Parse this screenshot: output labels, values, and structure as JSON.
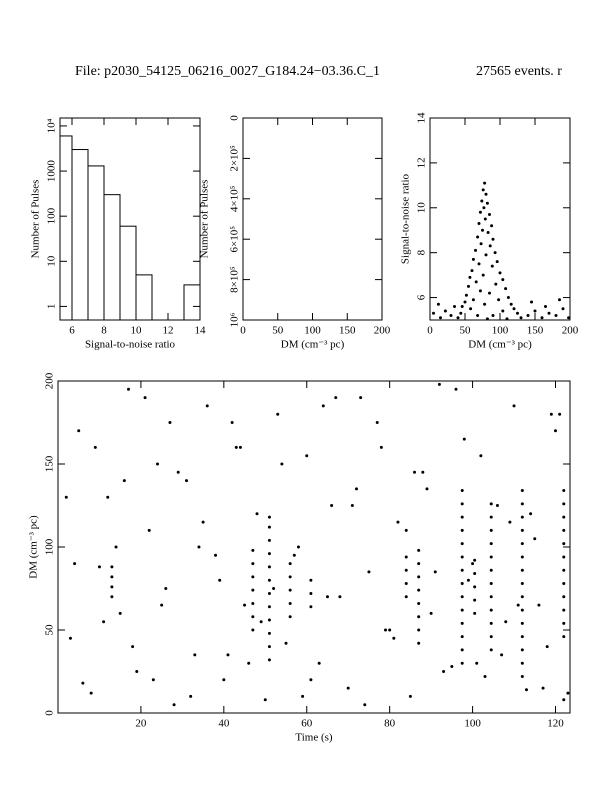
{
  "title": "File: p2030_54125_06216_0027_G184.24−03.36.C_1",
  "subtitle": "27565 events. r",
  "chart_data": [
    {
      "type": "histogram",
      "xlabel": "Signal-to-noise ratio",
      "ylabel": "Number of Pulses",
      "bins": [
        5,
        6,
        7,
        8,
        9,
        10,
        11,
        12,
        13,
        14
      ],
      "values": [
        6000,
        3000,
        1300,
        300,
        60,
        5,
        0,
        0,
        3
      ],
      "xlim": [
        5.25,
        14
      ],
      "xticks": [
        6,
        8,
        10,
        12,
        14
      ],
      "ylim": [
        0.5,
        15000
      ],
      "yscale": "log",
      "yticks": [
        1,
        10,
        100,
        1000,
        {
          "value": 10000,
          "label": "10⁴"
        }
      ],
      "color": "#000000"
    },
    {
      "type": "histogram",
      "xlabel": "DM (cm⁻³ pc)",
      "ylabel": "Number of Pulses",
      "xlim": [
        0,
        200
      ],
      "xticks": [
        0,
        50,
        100,
        150,
        200
      ],
      "ylim": [
        1000000,
        0
      ],
      "yticks": [
        0,
        {
          "value": 200000,
          "label": "2×10⁵"
        },
        {
          "value": 400000,
          "label": "4×10⁵"
        },
        {
          "value": 600000,
          "label": "6×10⁵"
        },
        {
          "value": 800000,
          "label": "8×10⁵"
        },
        {
          "value": 1000000,
          "label": "10⁶"
        }
      ],
      "color": "#000000"
    },
    {
      "type": "scatter",
      "xlabel": "DM (cm⁻³ pc)",
      "ylabel": "Signal-to-noise ratio",
      "x": [
        78,
        76,
        80,
        74,
        82,
        77,
        72,
        85,
        79,
        70,
        88,
        75,
        83,
        68,
        90,
        73,
        86,
        65,
        93,
        80,
        62,
        96,
        70,
        89,
        60,
        100,
        76,
        57,
        104,
        66,
        94,
        55,
        108,
        72,
        85,
        52,
        112,
        62,
        98,
        50,
        116,
        78,
        46,
        120,
        58,
        104,
        44,
        125,
        68,
        90,
        40,
        130,
        82,
        110,
        5,
        15,
        22,
        30,
        35,
        140,
        150,
        160,
        170,
        180,
        190,
        198,
        145,
        12,
        185,
        165
      ],
      "values": [
        11.1,
        10.8,
        10.6,
        10.3,
        10.2,
        10.0,
        9.8,
        9.7,
        9.5,
        9.3,
        9.2,
        9.0,
        8.9,
        8.7,
        8.6,
        8.4,
        8.3,
        8.1,
        8.0,
        7.9,
        7.7,
        7.6,
        7.5,
        7.4,
        7.2,
        7.1,
        7.0,
        6.9,
        6.8,
        6.7,
        6.6,
        6.5,
        6.4,
        6.3,
        6.2,
        6.1,
        6.0,
        5.9,
        5.9,
        5.8,
        5.7,
        5.7,
        5.6,
        5.5,
        5.5,
        5.4,
        5.3,
        5.3,
        5.2,
        5.2,
        5.1,
        5.1,
        5.05,
        5.05,
        5.3,
        5.1,
        5.4,
        5.2,
        5.6,
        5.2,
        5.4,
        5.1,
        5.3,
        5.2,
        5.5,
        5.1,
        5.8,
        5.7,
        5.9,
        5.6
      ],
      "xlim": [
        0,
        200
      ],
      "xticks": [
        0,
        50,
        100,
        150,
        200
      ],
      "ylim": [
        5,
        14
      ],
      "yticks": [
        6,
        8,
        10,
        12,
        14
      ],
      "color": "#000000"
    },
    {
      "type": "scatter",
      "xlabel": "Time (s)",
      "ylabel": "DM (cm⁻³ pc)",
      "x": [
        3,
        5,
        8,
        10,
        12,
        15,
        17,
        19,
        22,
        24,
        26,
        28,
        31,
        33,
        36,
        38,
        40,
        43,
        45,
        48,
        50,
        53,
        55,
        58,
        60,
        63,
        65,
        67,
        70,
        72,
        75,
        77,
        80,
        82,
        85,
        88,
        90,
        92,
        95,
        98,
        100,
        103,
        106,
        108,
        110,
        113,
        115,
        118,
        120,
        122,
        2,
        6,
        9,
        14,
        18,
        21,
        25,
        29,
        32,
        35,
        39,
        42,
        46,
        49,
        54,
        57,
        61,
        64,
        68,
        71,
        74,
        78,
        81,
        84,
        89,
        93,
        96,
        99,
        102,
        107,
        111,
        114,
        117,
        121,
        4,
        11,
        16,
        23,
        27,
        34,
        41,
        44,
        52,
        59,
        66,
        73,
        79,
        86,
        91,
        101,
        109,
        116,
        119,
        123,
        97.5,
        97.5,
        97.5,
        97.5,
        97.5,
        97.5,
        97.5,
        97.5,
        97.5,
        97.5,
        97.5,
        97.5,
        97.5,
        97.5,
        112,
        112,
        112,
        112,
        112,
        112,
        112,
        112,
        112,
        112,
        112,
        112,
        112,
        112,
        112,
        104.5,
        104.5,
        104.5,
        104.5,
        104.5,
        104.5,
        104.5,
        104.5,
        104.5,
        104.5,
        104.5,
        104.5,
        51,
        51,
        51,
        51,
        51,
        51,
        51,
        51,
        51,
        51,
        51,
        51,
        122,
        122,
        122,
        122,
        122,
        122,
        122,
        122,
        122,
        122,
        122,
        122,
        87,
        87,
        87,
        87,
        87,
        87,
        87,
        87,
        47,
        47,
        47,
        47,
        47,
        47,
        47,
        13,
        13,
        13,
        13,
        56,
        56,
        56,
        56,
        56,
        61,
        61,
        61,
        84,
        84,
        84,
        84,
        100.5,
        100.5,
        100.5,
        100.5,
        100.5
      ],
      "values": [
        45,
        170,
        12,
        88,
        130,
        60,
        195,
        25,
        110,
        150,
        75,
        5,
        140,
        35,
        185,
        95,
        20,
        160,
        65,
        120,
        8,
        180,
        42,
        100,
        155,
        30,
        70,
        190,
        15,
        135,
        85,
        175,
        50,
        115,
        10,
        145,
        60,
        198,
        28,
        165,
        90,
        22,
        125,
        55,
        185,
        14,
        105,
        40,
        170,
        8,
        130,
        18,
        160,
        100,
        40,
        190,
        65,
        145,
        10,
        115,
        80,
        175,
        30,
        55,
        150,
        95,
        20,
        185,
        70,
        125,
        5,
        160,
        45,
        110,
        135,
        25,
        195,
        80,
        155,
        35,
        65,
        120,
        15,
        180,
        90,
        55,
        140,
        20,
        175,
        100,
        35,
        160,
        75,
        10,
        125,
        190,
        50,
        145,
        85,
        30,
        115,
        65,
        180,
        12,
        30,
        38,
        46,
        54,
        62,
        70,
        78,
        86,
        94,
        102,
        110,
        118,
        126,
        134,
        22,
        30,
        38,
        46,
        54,
        62,
        70,
        78,
        86,
        94,
        102,
        110,
        118,
        126,
        134,
        38,
        46,
        54,
        62,
        70,
        78,
        86,
        94,
        102,
        110,
        118,
        126,
        32,
        40,
        48,
        56,
        64,
        72,
        80,
        88,
        96,
        104,
        112,
        118,
        46,
        54,
        62,
        70,
        78,
        86,
        94,
        102,
        110,
        118,
        126,
        134,
        42,
        50,
        58,
        66,
        74,
        82,
        90,
        98,
        50,
        58,
        66,
        74,
        82,
        90,
        98,
        70,
        76,
        82,
        88,
        58,
        66,
        74,
        82,
        90,
        64,
        72,
        80,
        70,
        78,
        86,
        94,
        60,
        68,
        76,
        84,
        92
      ],
      "xlim": [
        0,
        123.5
      ],
      "xticks": [
        20,
        40,
        60,
        80,
        100,
        120
      ],
      "ylim": [
        0,
        200
      ],
      "yticks": [
        0,
        50,
        100,
        150,
        200
      ],
      "color": "#000000"
    }
  ]
}
